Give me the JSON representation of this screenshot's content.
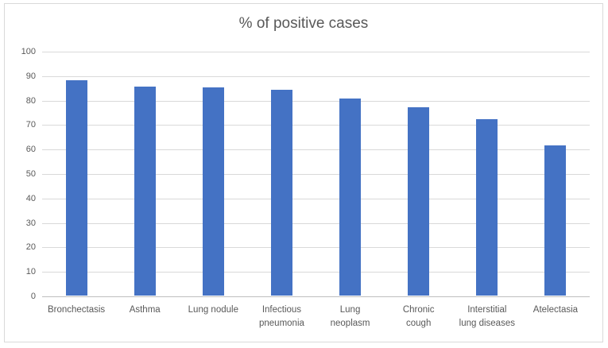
{
  "chart": {
    "colors": {
      "bar": "#4472C4",
      "gridline": "#D9D9D9",
      "axis_line": "#BFBFBF",
      "text": "#595959",
      "frame_border": "#D9D9D9",
      "background": "#FFFFFF"
    }
  },
  "chart_data": {
    "type": "bar",
    "title": "% of positive cases",
    "categories": [
      "Bronchectasis",
      "Asthma",
      "Lung nodule",
      "Infectious\npneumonia",
      "Lung\nneoplasm",
      "Chronic\ncough",
      "Interstitial\nlung diseases",
      "Atelectasia"
    ],
    "values": [
      88,
      85.5,
      85,
      84,
      80.5,
      77,
      72,
      61.5
    ],
    "xlabel": "",
    "ylabel": "",
    "ylim": [
      0,
      100
    ],
    "yticks": [
      0,
      10,
      20,
      30,
      40,
      50,
      60,
      70,
      80,
      90,
      100
    ],
    "grid": true,
    "legend": false,
    "bar_color": "#4472C4"
  }
}
